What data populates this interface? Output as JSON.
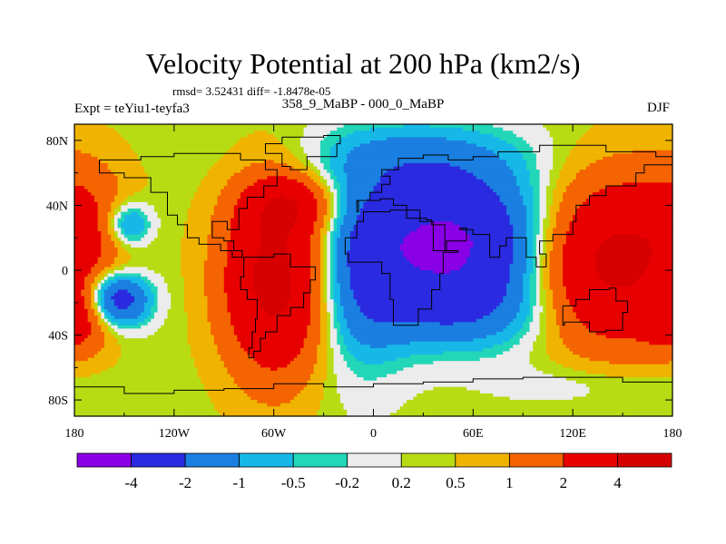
{
  "chart_data": {
    "type": "heatmap",
    "title": "Velocity Potential at 200 hPa (km2/s)",
    "stats_label": "rmsd= 3.52431 diff= -1.8478e-05",
    "experiment_label": "Expt = teYiu1-teyfa3",
    "period_label": "358_9_MaBP - 000_0_MaBP",
    "season_label": "DJF",
    "x_range": [
      -180,
      180
    ],
    "y_range": [
      -90,
      90
    ],
    "x_ticks": [
      {
        "value": -180,
        "label": "180"
      },
      {
        "value": -120,
        "label": "120W"
      },
      {
        "value": -60,
        "label": "60W"
      },
      {
        "value": 0,
        "label": "0"
      },
      {
        "value": 60,
        "label": "60E"
      },
      {
        "value": 120,
        "label": "120E"
      },
      {
        "value": 180,
        "label": "180"
      }
    ],
    "y_ticks": [
      {
        "value": 80,
        "label": "80N"
      },
      {
        "value": 40,
        "label": "40N"
      },
      {
        "value": 0,
        "label": "0"
      },
      {
        "value": -40,
        "label": "40S"
      },
      {
        "value": -80,
        "label": "80S"
      }
    ],
    "contour_levels": [
      -4,
      -2,
      -1,
      -0.5,
      -0.2,
      0.2,
      0.5,
      1,
      2,
      4
    ],
    "level_labels": [
      "-4",
      "-2",
      "-1",
      "-0.5",
      "-0.2",
      "0.2",
      "0.5",
      "1",
      "2",
      "4"
    ],
    "colors": [
      "#8a00e6",
      "#2a2ae0",
      "#1a7fe0",
      "#16b8e8",
      "#22d6b8",
      "#ececec",
      "#b8dc14",
      "#f0b400",
      "#f46400",
      "#e80000",
      "#d60000"
    ],
    "centers": [
      {
        "lon": 45,
        "lat": 18,
        "amp": -4.6,
        "sx": 42,
        "sy": 30
      },
      {
        "lon": -10,
        "lat": -10,
        "amp": -1.6,
        "sx": 22,
        "sy": 40
      },
      {
        "lon": 55,
        "lat": -25,
        "amp": -1.4,
        "sx": 40,
        "sy": 18
      },
      {
        "lon": 20,
        "lat": 70,
        "amp": -1.2,
        "sx": 50,
        "sy": 16
      },
      {
        "lon": -155,
        "lat": -18,
        "amp": -3.6,
        "sx": 14,
        "sy": 12
      },
      {
        "lon": -148,
        "lat": 28,
        "amp": -2.0,
        "sx": 10,
        "sy": 10
      },
      {
        "lon": -58,
        "lat": -5,
        "amp": 4.6,
        "sx": 22,
        "sy": 40
      },
      {
        "lon": -50,
        "lat": 40,
        "amp": 2.2,
        "sx": 18,
        "sy": 12
      },
      {
        "lon": 140,
        "lat": 5,
        "amp": 4.2,
        "sx": 30,
        "sy": 35
      },
      {
        "lon": -175,
        "lat": 25,
        "amp": 1.6,
        "sx": 20,
        "sy": 30
      },
      {
        "lon": -178,
        "lat": -30,
        "amp": 2.0,
        "sx": 14,
        "sy": 14
      },
      {
        "lon": 125,
        "lat": -70,
        "amp": -0.5,
        "sx": 35,
        "sy": 10
      }
    ],
    "background": 0.35
  }
}
